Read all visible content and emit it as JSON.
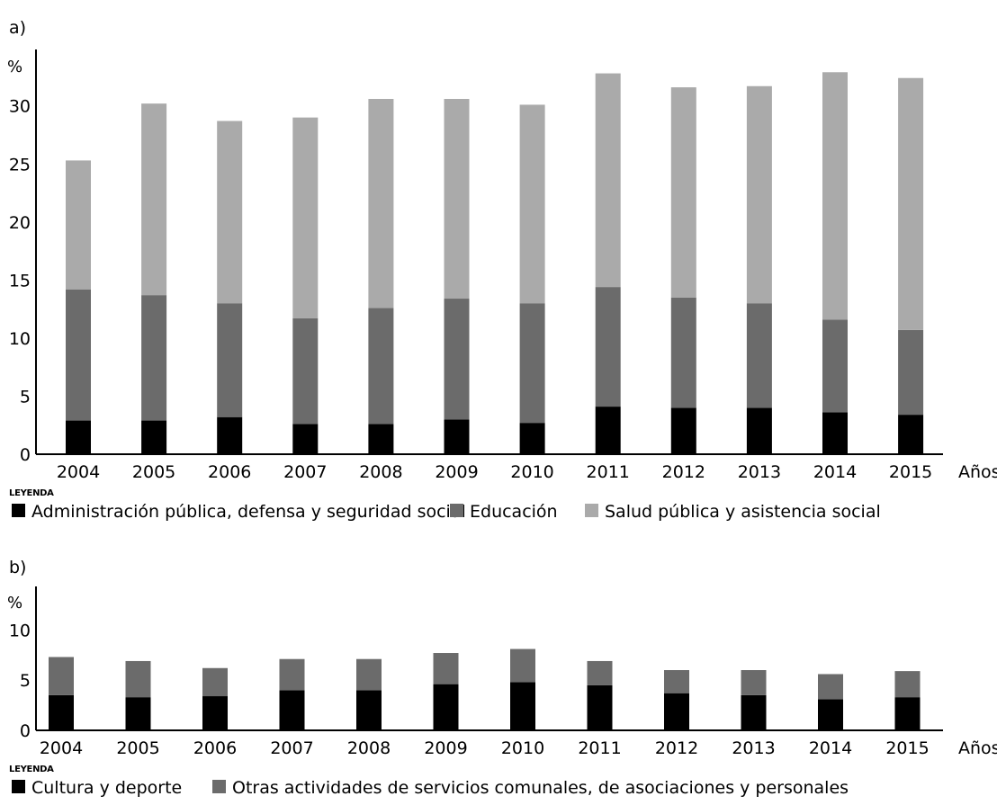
{
  "chart_data": [
    {
      "type": "bar",
      "stacked": true,
      "panel_label": "a)",
      "ylabel": "%",
      "xlabel": "Años",
      "ylim": [
        0,
        33
      ],
      "yticks": [
        "0",
        "5",
        "10",
        "15",
        "20",
        "25",
        "30"
      ],
      "categories": [
        "2004",
        "2005",
        "2006",
        "2007",
        "2008",
        "2009",
        "2010",
        "2011",
        "2012",
        "2013",
        "2014",
        "2015"
      ],
      "legend_title": "LEYENDA",
      "legend_position": "bottom",
      "series": [
        {
          "name": "Administración pública, defensa y seguridad social",
          "color": "#000000",
          "values": [
            2.9,
            2.9,
            3.2,
            2.6,
            2.6,
            3.0,
            2.7,
            4.1,
            4.0,
            4.0,
            3.6,
            3.4
          ]
        },
        {
          "name": "Educación",
          "color": "#6b6b6b",
          "values": [
            11.3,
            10.8,
            9.8,
            9.1,
            10.0,
            10.4,
            10.3,
            10.3,
            9.5,
            9.0,
            8.0,
            7.3
          ]
        },
        {
          "name": "Salud pública y asistencia social",
          "color": "#aaaaaa",
          "values": [
            11.1,
            16.5,
            15.7,
            17.3,
            18.0,
            17.2,
            17.1,
            18.4,
            18.1,
            18.7,
            21.3,
            21.7
          ]
        }
      ]
    },
    {
      "type": "bar",
      "stacked": true,
      "panel_label": "b)",
      "ylabel": "%",
      "xlabel": "Años",
      "ylim": [
        0,
        12
      ],
      "yticks": [
        "0",
        "5",
        "10"
      ],
      "categories": [
        "2004",
        "2005",
        "2006",
        "2007",
        "2008",
        "2009",
        "2010",
        "2011",
        "2012",
        "2013",
        "2014",
        "2015"
      ],
      "legend_title": "LEYENDA",
      "legend_position": "bottom",
      "series": [
        {
          "name": "Cultura y deporte",
          "color": "#000000",
          "values": [
            3.5,
            3.3,
            3.4,
            4.0,
            4.0,
            4.6,
            4.8,
            4.5,
            3.7,
            3.5,
            3.1,
            3.3
          ]
        },
        {
          "name": "Otras actividades de servicios comunales, de asociaciones y personales",
          "color": "#6b6b6b",
          "values": [
            3.8,
            3.6,
            2.8,
            3.1,
            3.1,
            3.1,
            3.3,
            2.4,
            2.3,
            2.5,
            2.5,
            2.6
          ]
        }
      ]
    }
  ]
}
